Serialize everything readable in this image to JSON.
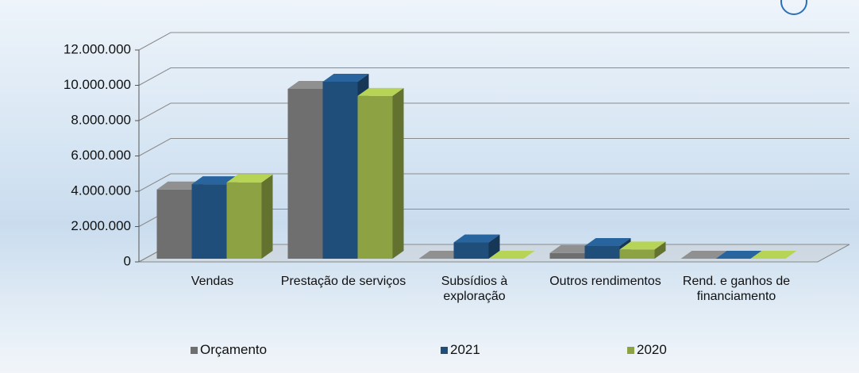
{
  "chart_data": {
    "type": "bar3d",
    "categories": [
      "Vendas",
      "Prestação de serviços",
      "Subsídios à exploração",
      "Outros rendimentos",
      "Rend. e ganhos de financiamento"
    ],
    "series": [
      {
        "name": "Orçamento",
        "color": "#6f6f6f",
        "values": [
          4100000,
          9800000,
          100000,
          500000,
          20000
        ]
      },
      {
        "name": "2021",
        "color": "#1f4e7a",
        "values": [
          4400000,
          10200000,
          1100000,
          900000,
          30000
        ]
      },
      {
        "name": "2020",
        "color": "#8da343",
        "values": [
          4500000,
          9400000,
          50000,
          700000,
          20000
        ]
      }
    ],
    "ylim": [
      0,
      12000000
    ],
    "yticks": [
      0,
      {
        "value": 2000000,
        "label": "2.000.000"
      },
      {
        "value": 4000000,
        "label": "4.000.000"
      },
      {
        "value": 6000000,
        "label": "6.000.000"
      },
      {
        "value": 8000000,
        "label": "8.000.000"
      },
      {
        "value": 10000000,
        "label": "10.000.000"
      },
      {
        "value": 12000000,
        "label": "12.000.000"
      }
    ],
    "grid": true
  }
}
